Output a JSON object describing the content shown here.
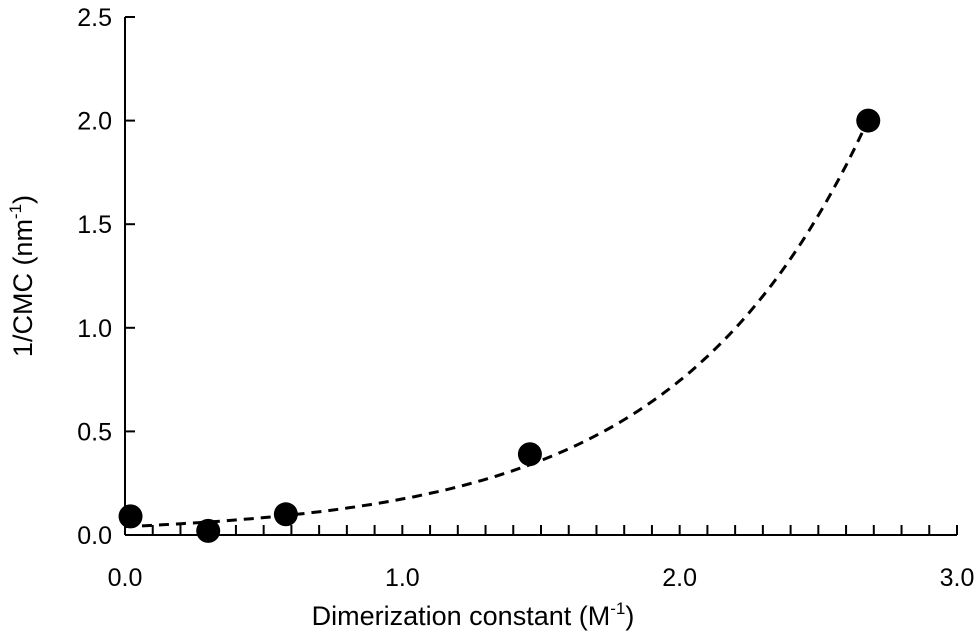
{
  "chart_data": {
    "type": "scatter",
    "xlabel": "Dimerization constant (M",
    "xlabel_sup": "-1",
    "xlabel_end": ")",
    "ylabel": "1/CMC (nm",
    "ylabel_sup": "-1",
    "ylabel_end": ")",
    "xlim": [
      0,
      3.0
    ],
    "ylim": [
      0,
      2.5
    ],
    "x_ticks": [
      "0.0",
      "1.0",
      "2.0",
      "3.0"
    ],
    "y_ticks": [
      "0.0",
      "0.5",
      "1.0",
      "1.5",
      "2.0",
      "2.5"
    ],
    "x_minor_step": 0.1,
    "grid": false,
    "legend": "none",
    "points": [
      {
        "x": 0.02,
        "y": 0.09
      },
      {
        "x": 0.3,
        "y": 0.02
      },
      {
        "x": 0.58,
        "y": 0.1
      },
      {
        "x": 1.46,
        "y": 0.39
      },
      {
        "x": 2.68,
        "y": 2.0
      }
    ],
    "fit": {
      "type": "exponential",
      "style": "dashed",
      "x": [
        0.0,
        2.68
      ],
      "a": 0.0405,
      "b": 1.456
    },
    "marker_color": "#000000",
    "line_color": "#000000"
  }
}
